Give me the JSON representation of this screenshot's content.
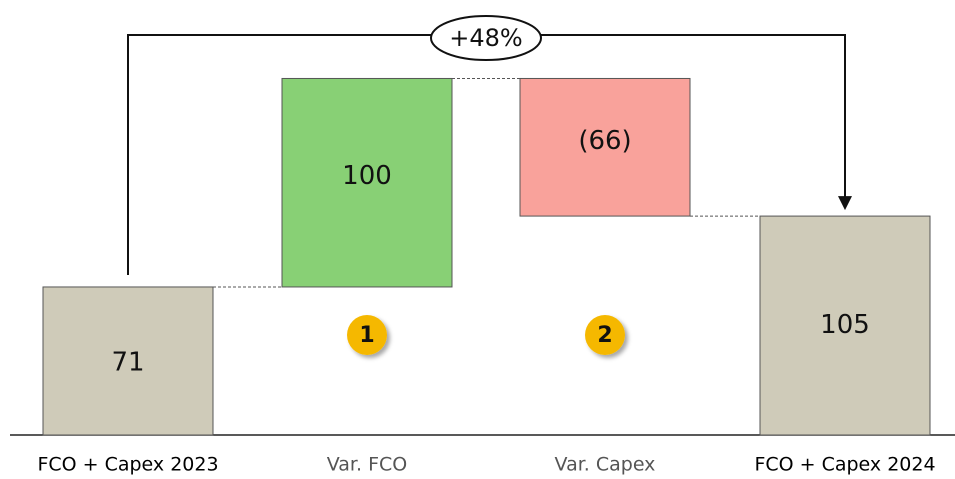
{
  "chart_data": {
    "type": "waterfall",
    "categories": [
      "FCO + Capex 2023",
      "Var. FCO",
      "Var. Capex",
      "FCO + Capex 2024"
    ],
    "values": [
      71,
      100,
      -66,
      105
    ],
    "value_labels": [
      "71",
      "100",
      "(66)",
      "105"
    ],
    "totals": [
      true,
      false,
      false,
      true
    ],
    "colors": [
      "#cfcbb9",
      "#88d075",
      "#f9a29b",
      "#cfcbb9"
    ],
    "badge_labels": [
      null,
      "1",
      "2",
      null
    ],
    "annotation": "+48%",
    "ylim": [
      0,
      200
    ]
  }
}
